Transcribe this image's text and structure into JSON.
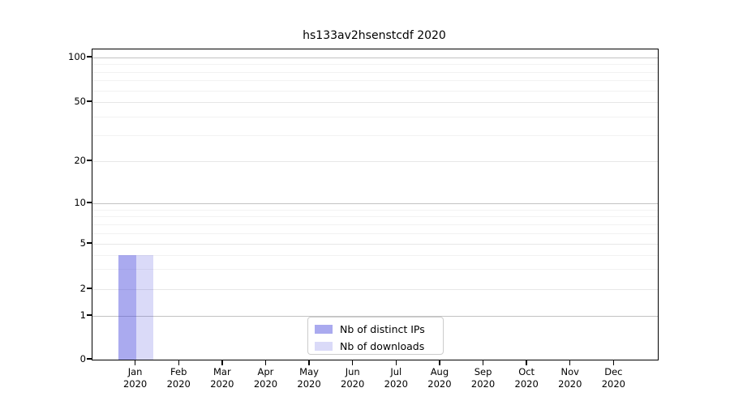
{
  "chart_data": {
    "type": "bar",
    "title": "hs133av2hsenstcdf 2020",
    "categories": [
      "Jan",
      "Feb",
      "Mar",
      "Apr",
      "May",
      "Jun",
      "Jul",
      "Aug",
      "Sep",
      "Oct",
      "Nov",
      "Dec"
    ],
    "year_label": "2020",
    "series": [
      {
        "name": "Nb of distinct IPs",
        "color": "rgba(70,70,220,0.46)",
        "values": [
          4,
          0,
          0,
          0,
          0,
          0,
          0,
          0,
          0,
          0,
          0,
          0
        ]
      },
      {
        "name": "Nb of downloads",
        "color": "rgba(70,70,220,0.20)",
        "values": [
          4,
          0,
          0,
          0,
          0,
          0,
          0,
          0,
          0,
          0,
          0,
          0
        ]
      }
    ],
    "xlabel": "",
    "ylabel": "",
    "yscale": "symlog",
    "ylim": [
      0,
      113
    ],
    "yticks": [
      0,
      1,
      2,
      5,
      10,
      20,
      50,
      100
    ],
    "ytick_labels": [
      "0",
      "1",
      "2",
      "5",
      "10",
      "20",
      "50",
      "100"
    ],
    "minor_yticks": [
      3,
      4,
      6,
      7,
      8,
      9,
      30,
      40,
      60,
      70,
      80,
      90
    ],
    "grid": "horizontal",
    "legend_position": "lower center",
    "scale_anchors": [
      [
        0,
        1.0
      ],
      [
        1,
        0.859
      ],
      [
        2,
        0.7728
      ],
      [
        5,
        0.6266
      ],
      [
        10,
        0.4961
      ],
      [
        20,
        0.3603
      ],
      [
        50,
        0.1697
      ],
      [
        100,
        0.0261
      ]
    ]
  },
  "colors": {
    "background": "#ffffff",
    "axis_frame": "#000000",
    "grid_power10": "#c3c3c3",
    "grid_labeled": "#e7e7e7",
    "grid_minor": "#f2f2f2",
    "text": "#000000",
    "legend_border": "#cccccc"
  }
}
